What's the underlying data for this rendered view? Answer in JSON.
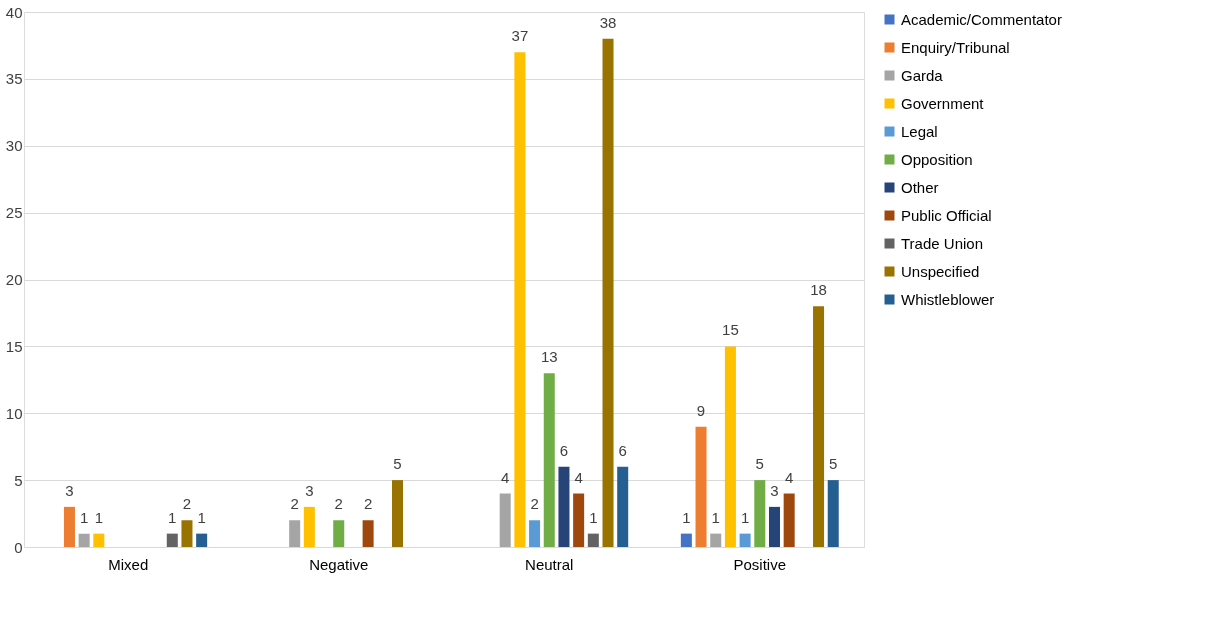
{
  "chart_data": {
    "type": "bar",
    "categories": [
      "Mixed",
      "Negative",
      "Neutral",
      "Positive"
    ],
    "series": [
      {
        "name": "Academic/Commentator",
        "color": "#4472c4",
        "values": [
          null,
          null,
          null,
          1
        ]
      },
      {
        "name": "Enquiry/Tribunal",
        "color": "#ed7d31",
        "values": [
          3,
          null,
          null,
          9
        ]
      },
      {
        "name": "Garda",
        "color": "#a5a5a5",
        "values": [
          1,
          2,
          4,
          1
        ]
      },
      {
        "name": "Government",
        "color": "#ffc000",
        "values": [
          1,
          3,
          37,
          15
        ]
      },
      {
        "name": "Legal",
        "color": "#5b9bd5",
        "values": [
          null,
          null,
          2,
          1
        ]
      },
      {
        "name": "Opposition",
        "color": "#70ad47",
        "values": [
          null,
          2,
          13,
          5
        ]
      },
      {
        "name": "Other",
        "color": "#264478",
        "values": [
          null,
          null,
          6,
          3
        ]
      },
      {
        "name": "Public Official",
        "color": "#9e480e",
        "values": [
          null,
          2,
          4,
          4
        ]
      },
      {
        "name": "Trade Union",
        "color": "#636363",
        "values": [
          1,
          null,
          1,
          null
        ]
      },
      {
        "name": "Unspecified",
        "color": "#997300",
        "values": [
          2,
          5,
          38,
          18
        ]
      },
      {
        "name": "Whistleblower",
        "color": "#255e91",
        "values": [
          1,
          null,
          6,
          5
        ]
      }
    ],
    "ylim": [
      0,
      40
    ],
    "yticks": [
      0,
      5,
      10,
      15,
      20,
      25,
      30,
      35,
      40
    ],
    "grid": "y",
    "legend": "right",
    "data_labels": true
  }
}
